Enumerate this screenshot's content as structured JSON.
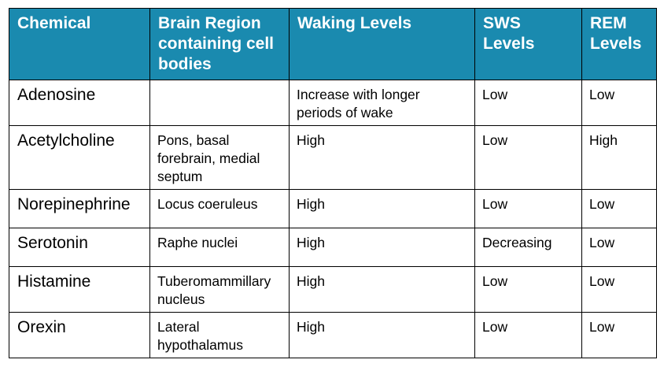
{
  "table": {
    "headers": [
      "Chemical",
      "Brain Region containing cell bodies",
      "Waking Levels",
      "SWS Levels",
      "REM Levels"
    ],
    "rows": [
      [
        "Adenosine",
        "",
        "Increase with longer periods of wake",
        "Low",
        "Low"
      ],
      [
        "Acetylcholine",
        "Pons, basal forebrain, medial septum",
        "High",
        "Low",
        "High"
      ],
      [
        "Norepinephrine",
        "Locus coeruleus",
        "High",
        "Low",
        "Low"
      ],
      [
        "Serotonin",
        "Raphe nuclei",
        "High",
        "Decreasing",
        "Low"
      ],
      [
        "Histamine",
        "Tuberomammillary nucleus",
        "High",
        "Low",
        "Low"
      ],
      [
        "Orexin",
        "Lateral hypothalamus",
        "High",
        "Low",
        "Low"
      ]
    ]
  },
  "colors": {
    "header_background": "#1a8aaf",
    "header_text": "#ffffff",
    "border": "#000000"
  }
}
